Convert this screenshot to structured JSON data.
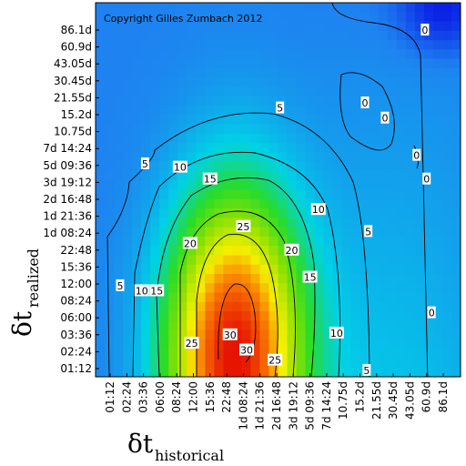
{
  "chart_data": {
    "type": "heatmap",
    "title": "",
    "annotation": "Copyright Gilles Zumbach 2012",
    "xlabel": {
      "symbol": "δt",
      "subscript": "historical"
    },
    "ylabel": {
      "symbol": "δt",
      "subscript": "realized"
    },
    "x_ticks": [
      "01:12",
      "02:24",
      "03:36",
      "06:00",
      "08:24",
      "12:00",
      "15:36",
      "22:48",
      "1d 08:24",
      "1d 21:36",
      "2d 16:48",
      "3d 19:12",
      "5d 09:36",
      "7d 14:24",
      "10.75d",
      "15.2d",
      "21.55d",
      "30.45d",
      "43.05d",
      "60.9d",
      "86.1d"
    ],
    "y_ticks": [
      "01:12",
      "02:24",
      "03:36",
      "06:00",
      "08:24",
      "12:00",
      "15:36",
      "22:48",
      "1d 08:24",
      "1d 21:36",
      "2d 16:48",
      "3d 19:12",
      "5d 09:36",
      "7d 14:24",
      "10.75d",
      "15.2d",
      "21.55d",
      "30.45d",
      "43.05d",
      "60.9d",
      "86.1d"
    ],
    "contour_levels": [
      0,
      5,
      10,
      15,
      20,
      25,
      30
    ],
    "color_scale": {
      "low": "#0a1ee6",
      "high": "#e61400"
    },
    "contour_labels": [
      {
        "text": "0",
        "xi": 18.9,
        "yi": 20.0
      },
      {
        "text": "0",
        "xi": 15.3,
        "yi": 15.7
      },
      {
        "text": "0",
        "xi": 16.5,
        "yi": 14.8
      },
      {
        "text": "0",
        "xi": 18.4,
        "yi": 12.6
      },
      {
        "text": "0",
        "xi": 19.0,
        "yi": 11.2
      },
      {
        "text": "0",
        "xi": 19.3,
        "yi": 3.3
      },
      {
        "text": "5",
        "xi": 10.2,
        "yi": 15.4
      },
      {
        "text": "5",
        "xi": 2.1,
        "yi": 12.1
      },
      {
        "text": "5",
        "xi": 15.5,
        "yi": 8.1
      },
      {
        "text": "5",
        "xi": 0.6,
        "yi": 4.9
      },
      {
        "text": "5",
        "xi": 15.4,
        "yi": -0.1
      },
      {
        "text": "10",
        "xi": 4.2,
        "yi": 11.9
      },
      {
        "text": "10",
        "xi": 12.5,
        "yi": 9.4
      },
      {
        "text": "10",
        "xi": 1.9,
        "yi": 4.6
      },
      {
        "text": "10",
        "xi": 13.6,
        "yi": 2.1
      },
      {
        "text": "15",
        "xi": 6.0,
        "yi": 11.2
      },
      {
        "text": "15",
        "xi": 12.0,
        "yi": 5.4
      },
      {
        "text": "15",
        "xi": 2.8,
        "yi": 4.6
      },
      {
        "text": "20",
        "xi": 4.8,
        "yi": 7.4
      },
      {
        "text": "20",
        "xi": 10.9,
        "yi": 7.0
      },
      {
        "text": "25",
        "xi": 8.0,
        "yi": 8.4
      },
      {
        "text": "25",
        "xi": 4.9,
        "yi": 1.5
      },
      {
        "text": "25",
        "xi": 9.9,
        "yi": 0.5
      },
      {
        "text": "30",
        "xi": 7.2,
        "yi": 2.0
      },
      {
        "text": "30",
        "xi": 8.2,
        "yi": 1.1
      }
    ]
  }
}
